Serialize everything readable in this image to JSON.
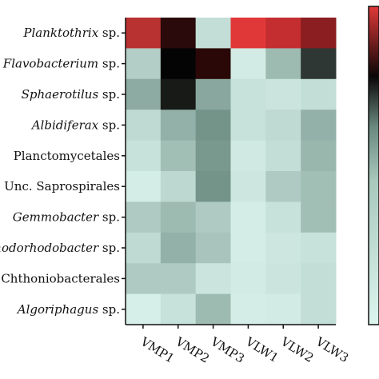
{
  "chart_data": {
    "type": "heatmap",
    "rows": [
      {
        "label": "Planktothrix",
        "suffix": " sp.",
        "italic": true
      },
      {
        "label": "Flavobacterium",
        "suffix": " sp.",
        "italic": true
      },
      {
        "label": "Sphaerotilus",
        "suffix": " sp.",
        "italic": true
      },
      {
        "label": "Albidiferax",
        "suffix": " sp.",
        "italic": true
      },
      {
        "label": "Planctomycetales",
        "suffix": "",
        "italic": false
      },
      {
        "label": "Unc. Saprospirales",
        "suffix": "",
        "italic": false
      },
      {
        "label": "Gemmobacter",
        "suffix": " sp.",
        "italic": true
      },
      {
        "label": "Rhodorhodobacter",
        "suffix": " sp.",
        "italic": true
      },
      {
        "label": "Chthoniobacterales",
        "suffix": "",
        "italic": false
      },
      {
        "label": "Algoriphagus",
        "suffix": " sp.",
        "italic": true
      }
    ],
    "columns": [
      "VMP1",
      "VMP2",
      "VMP3",
      "VLW1",
      "VLW2",
      "VLW3"
    ],
    "values": [
      [
        0.88,
        0.98,
        0.12,
        0.8,
        0.86,
        0.92
      ],
      [
        0.2,
        1.0,
        0.97,
        0.05,
        0.3,
        0.72
      ],
      [
        0.38,
        0.78,
        0.4,
        0.1,
        0.08,
        0.12
      ],
      [
        0.14,
        0.35,
        0.5,
        0.1,
        0.14,
        0.35
      ],
      [
        0.1,
        0.28,
        0.48,
        0.06,
        0.12,
        0.32
      ],
      [
        0.04,
        0.15,
        0.5,
        0.07,
        0.22,
        0.28
      ],
      [
        0.22,
        0.3,
        0.22,
        0.04,
        0.1,
        0.28
      ],
      [
        0.14,
        0.35,
        0.25,
        0.04,
        0.07,
        0.1
      ],
      [
        0.22,
        0.22,
        0.08,
        0.05,
        0.08,
        0.12
      ],
      [
        0.03,
        0.1,
        0.3,
        0.04,
        0.05,
        0.12
      ]
    ],
    "colorscale": {
      "low": "#dcf5ee",
      "mid_gray": "#6a8a80",
      "mid_dark": "#0a0606",
      "high": "#e03838"
    },
    "grid": false,
    "legend": "colorbar-right"
  }
}
